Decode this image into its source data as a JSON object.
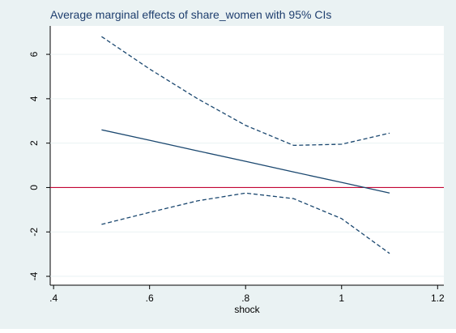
{
  "chart_data": {
    "type": "line",
    "title": "Average marginal effects of share_women with 95% CIs",
    "x_label": "shock",
    "x": [
      0.5,
      0.6,
      0.7,
      0.8,
      0.9,
      1.0,
      1.1
    ],
    "series": [
      {
        "color": "#1a476f",
        "dashed": false,
        "values": [
          2.6,
          2.13,
          1.65,
          1.18,
          0.7,
          0.23,
          -0.25
        ]
      },
      {
        "color": "#1a476f",
        "dashed": true,
        "values": [
          6.8,
          5.34,
          4.0,
          2.8,
          1.9,
          1.95,
          2.45
        ]
      },
      {
        "color": "#1a476f",
        "dashed": true,
        "values": [
          -1.66,
          -1.12,
          -0.6,
          -0.25,
          -0.5,
          -1.4,
          -2.97
        ]
      }
    ],
    "xlim": [
      0.393,
      1.213
    ],
    "xticks": [
      {
        "value": 0.4,
        "label": ".4"
      },
      {
        "value": 0.6,
        "label": ".6"
      },
      {
        "value": 0.8,
        "label": ".8"
      },
      1,
      {
        "value": 1.2,
        "label": "1.2"
      }
    ],
    "ylim": [
      -4.4,
      7.28
    ],
    "yticks": [
      -4,
      -2,
      0,
      2,
      4,
      6
    ],
    "grid": true,
    "reference_line": {
      "value": 0,
      "color": "#c10534"
    }
  }
}
